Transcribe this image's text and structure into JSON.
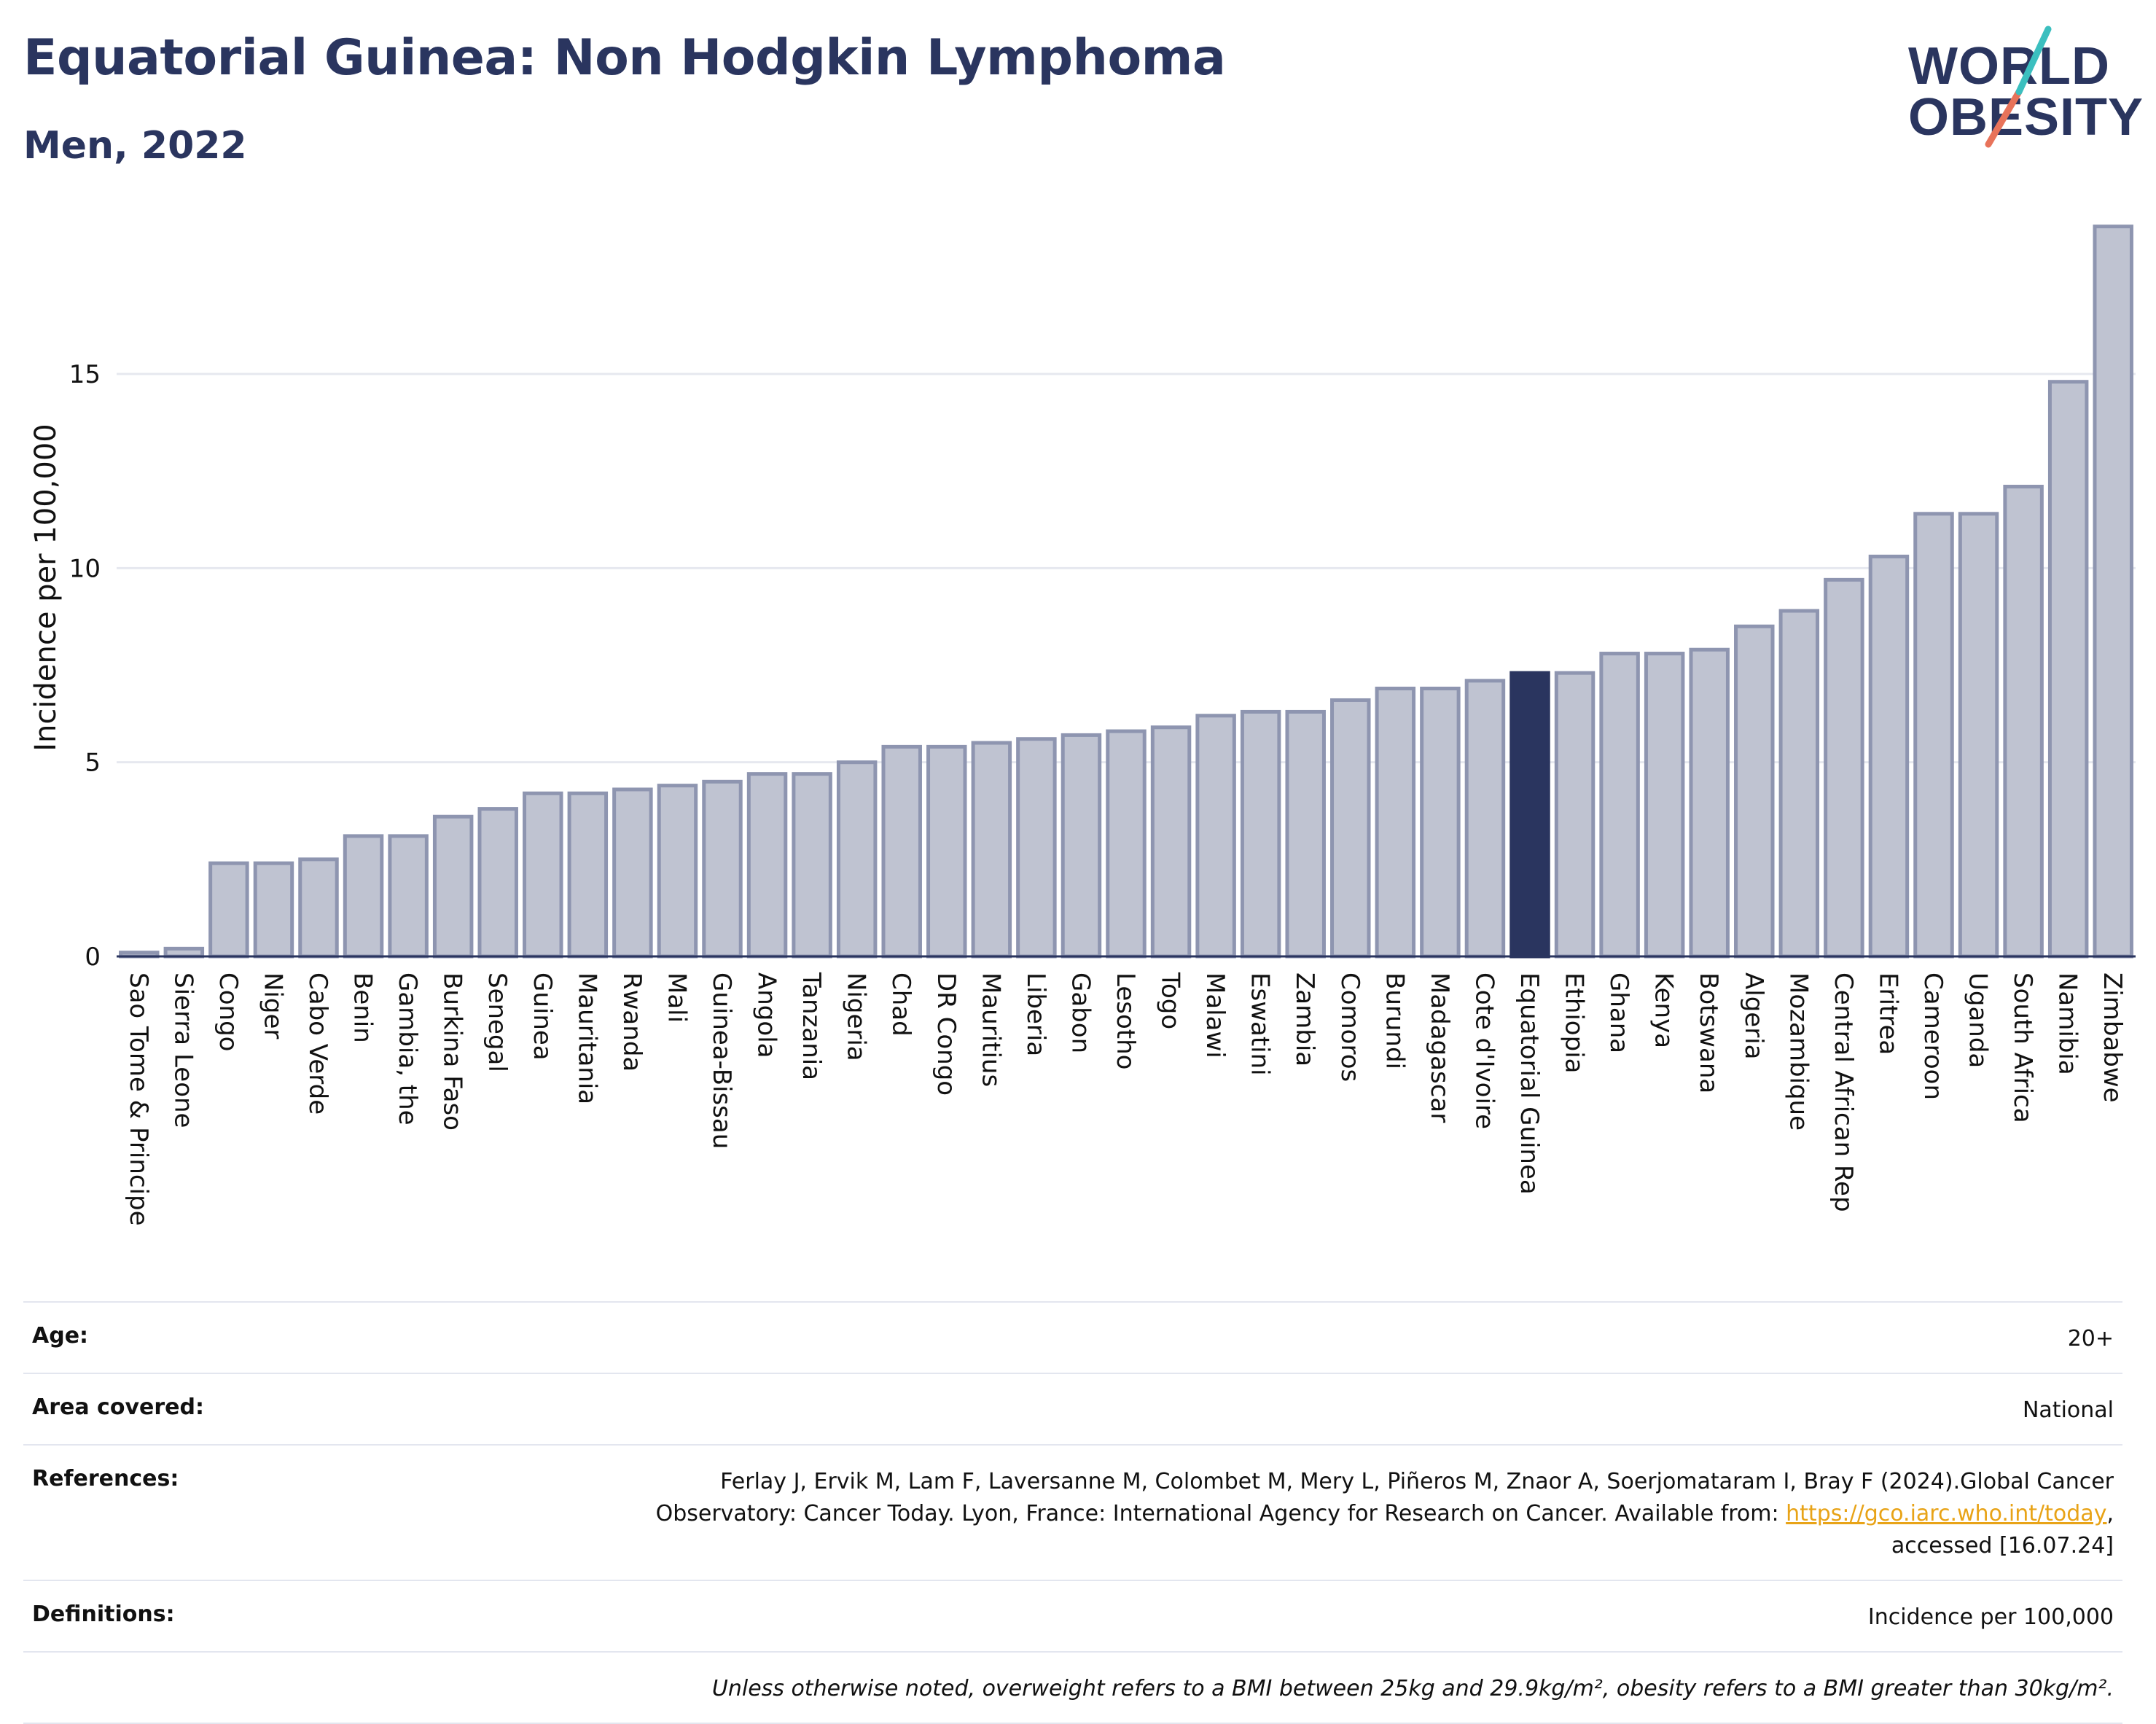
{
  "title": "Equatorial Guinea: Non Hodgkin Lymphoma",
  "subtitle": "Men, 2022",
  "logo": {
    "line1": "WORLD",
    "line2": "OBESITY"
  },
  "colors": {
    "bar": "#bfc3d1",
    "bar_stroke": "#8e95b0",
    "highlight": "#2a355f",
    "axis_text": "#111111",
    "grid": "#e6e8ef"
  },
  "chart_data": {
    "type": "bar",
    "ylabel": "Incidence per 100,000",
    "ylim": [
      0,
      19
    ],
    "yticks": [
      0,
      5,
      10,
      15
    ],
    "grid": true,
    "highlight": "Equatorial Guinea",
    "categories": [
      "Sao Tome & Principe",
      "Sierra Leone",
      "Congo",
      "Niger",
      "Cabo Verde",
      "Benin",
      "Gambia, the",
      "Burkina Faso",
      "Senegal",
      "Guinea",
      "Mauritania",
      "Rwanda",
      "Mali",
      "Guinea-Bissau",
      "Angola",
      "Tanzania",
      "Nigeria",
      "Chad",
      "DR Congo",
      "Mauritius",
      "Liberia",
      "Gabon",
      "Lesotho",
      "Togo",
      "Malawi",
      "Eswatini",
      "Zambia",
      "Comoros",
      "Burundi",
      "Madagascar",
      "Cote d'Ivoire",
      "Equatorial Guinea",
      "Ethiopia",
      "Ghana",
      "Kenya",
      "Botswana",
      "Algeria",
      "Mozambique",
      "Central African Rep",
      "Eritrea",
      "Cameroon",
      "Uganda",
      "South Africa",
      "Namibia",
      "Zimbabwe"
    ],
    "values": [
      0.1,
      0.2,
      2.4,
      2.4,
      2.5,
      3.1,
      3.1,
      3.6,
      3.8,
      4.2,
      4.2,
      4.3,
      4.4,
      4.5,
      4.7,
      4.7,
      5.0,
      5.4,
      5.4,
      5.5,
      5.6,
      5.7,
      5.8,
      5.9,
      6.2,
      6.3,
      6.3,
      6.6,
      6.9,
      6.9,
      7.1,
      7.3,
      7.3,
      7.8,
      7.8,
      7.9,
      8.5,
      8.9,
      9.7,
      10.3,
      11.4,
      11.4,
      12.1,
      14.8,
      18.8
    ]
  },
  "meta": {
    "age_label": "Age:",
    "age_value": "20+",
    "area_label": "Area covered:",
    "area_value": "National",
    "references_label": "References:",
    "references_line1": "Ferlay J, Ervik M, Lam F, Laversanne M, Colombet M, Mery L, Piñeros M, Znaor A, Soerjomataram I, Bray F (2024).Global Cancer",
    "references_line2_pre": "Observatory: Cancer Today. Lyon, France: International Agency for Research on Cancer. Available from: ",
    "references_link": "https://gco.iarc.who.int/today",
    "references_line2_post": ",",
    "references_line3": "accessed [16.07.24]",
    "definitions_label": "Definitions:",
    "definitions_value": "Incidence per 100,000",
    "note": "Unless otherwise noted, overweight refers to a BMI between 25kg and 29.9kg/m², obesity refers to a BMI greater than 30kg/m²."
  }
}
